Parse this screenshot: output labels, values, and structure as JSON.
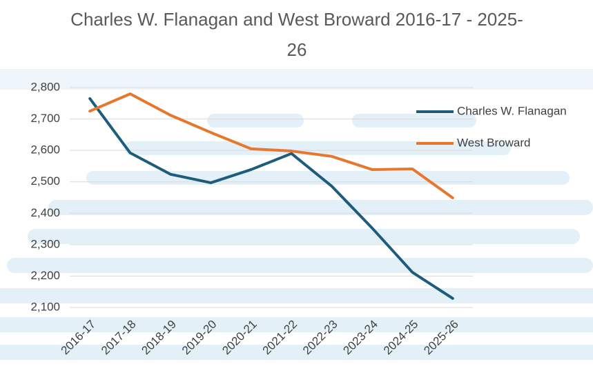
{
  "chart_data": {
    "type": "line",
    "title": "Charles W. Flanagan and West Broward 2016-17 - 2025-26",
    "categories": [
      "2016-17",
      "2017-18",
      "2018-19",
      "2019-20",
      "2020-21",
      "2021-22",
      "2022-23",
      "2023-24",
      "2024-25",
      "2025-26"
    ],
    "series": [
      {
        "name": "Charles W. Flanagan",
        "color": "#1d5c7c",
        "values": [
          2765,
          2592,
          2524,
          2497,
          2539,
          2590,
          2486,
          2353,
          2212,
          2129
        ]
      },
      {
        "name": "West Broward",
        "color": "#e8772e",
        "values": [
          2725,
          2780,
          2712,
          2657,
          2605,
          2598,
          2581,
          2539,
          2541,
          2449
        ]
      }
    ],
    "ylim": [
      2100,
      2800
    ],
    "yticks": [
      {
        "value": 2100,
        "label": "2,100"
      },
      {
        "value": 2200,
        "label": "2,200"
      },
      {
        "value": 2300,
        "label": "2,300"
      },
      {
        "value": 2400,
        "label": "2,400"
      },
      {
        "value": 2500,
        "label": "2,500"
      },
      {
        "value": 2600,
        "label": "2,600"
      },
      {
        "value": 2700,
        "label": "2,700"
      },
      {
        "value": 2800,
        "label": "2,800"
      }
    ],
    "grid": true,
    "legend": "right"
  }
}
